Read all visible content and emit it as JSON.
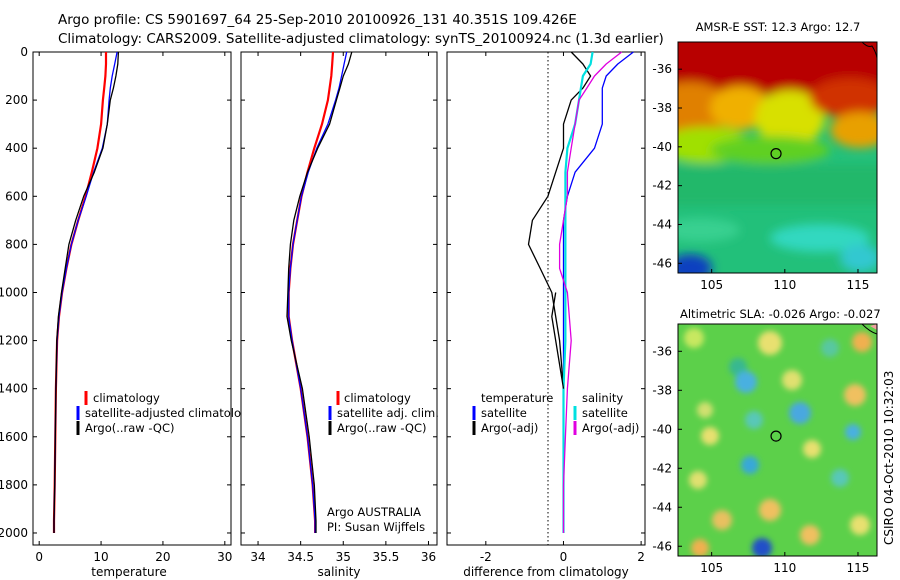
{
  "header": {
    "title_line1": "Argo profile: CS 5901697_64 25-Sep-2010 20100926_131 40.351S 109.426E",
    "title_line2": "Climatology: CARS2009. Satellite-adjusted climatology: synTS_20100924.nc (1.3d earlier)"
  },
  "colors": {
    "climatology": "#ff0000",
    "satellite": "#0000ff",
    "argo": "#000000",
    "salinity_satellite": "#00e0e0",
    "salinity_argo": "#e000e0"
  },
  "chart_data": [
    {
      "type": "line",
      "xlabel": "temperature",
      "xlim": [
        -1,
        31
      ],
      "ylim": [
        2050,
        0
      ],
      "xticks": [
        "0",
        "10",
        "20",
        "30"
      ],
      "yticks": [
        "0",
        "200",
        "400",
        "600",
        "800",
        "1000",
        "1200",
        "1400",
        "1600",
        "1800",
        "2000"
      ],
      "legend": [
        "climatology",
        "satellite-adjusted climatology",
        "Argo(..raw -QC)"
      ],
      "series": [
        {
          "name": "climatology",
          "color": "#ff0000",
          "width": 2.2,
          "x": [
            10.8,
            10.8,
            10.7,
            10.5,
            10.3,
            10.0,
            9.4,
            8.5,
            7.5,
            6.3,
            5.2,
            4.4,
            3.7,
            3.2,
            2.9,
            2.7,
            2.6,
            2.5,
            2.4,
            2.4
          ],
          "y": [
            0,
            50,
            100,
            150,
            200,
            300,
            400,
            500,
            600,
            700,
            800,
            900,
            1000,
            1100,
            1200,
            1400,
            1600,
            1800,
            1950,
            2000
          ]
        },
        {
          "name": "satellite-adjusted climatology",
          "color": "#0000ff",
          "width": 1.3,
          "x": [
            12.6,
            12.2,
            11.8,
            11.5,
            11.3,
            11.0,
            10.2,
            8.8,
            7.6,
            6.3,
            5.2,
            4.4,
            3.7,
            3.2,
            2.9,
            2.7,
            2.6,
            2.5,
            2.4,
            2.4
          ],
          "y": [
            0,
            50,
            100,
            150,
            200,
            300,
            400,
            500,
            600,
            700,
            800,
            900,
            1000,
            1100,
            1200,
            1400,
            1600,
            1800,
            1950,
            2000
          ]
        },
        {
          "name": "Argo(..raw -QC)",
          "color": "#000000",
          "width": 1.3,
          "x": [
            12.8,
            12.7,
            12.4,
            12.0,
            11.5,
            11.0,
            10.3,
            8.9,
            7.2,
            5.9,
            4.8,
            4.2,
            3.6,
            3.1,
            2.85,
            2.7,
            2.6,
            2.5,
            2.4,
            2.4
          ],
          "y": [
            0,
            50,
            100,
            150,
            200,
            300,
            400,
            500,
            600,
            700,
            800,
            900,
            1000,
            1100,
            1200,
            1400,
            1600,
            1800,
            1950,
            2000
          ]
        }
      ]
    },
    {
      "type": "line",
      "xlabel": "salinity",
      "xlim": [
        33.8,
        36.1
      ],
      "ylim": [
        2050,
        0
      ],
      "xticks": [
        "34",
        "34.5",
        "35",
        "35.5",
        "36"
      ],
      "legend": [
        "climatology",
        "satellite adj. clim.",
        "Argo(..raw -QC)"
      ],
      "annotation": [
        "Argo AUSTRALIA",
        "PI: Susan Wijffels"
      ],
      "series": [
        {
          "name": "climatology",
          "color": "#ff0000",
          "width": 2.2,
          "x": [
            34.88,
            34.87,
            34.86,
            34.84,
            34.82,
            34.75,
            34.66,
            34.58,
            34.51,
            34.46,
            34.41,
            34.38,
            34.36,
            34.36,
            34.4,
            34.5,
            34.58,
            34.64,
            34.67,
            34.67
          ],
          "y": [
            0,
            50,
            100,
            150,
            200,
            300,
            400,
            500,
            600,
            700,
            800,
            900,
            1000,
            1100,
            1200,
            1400,
            1600,
            1800,
            1950,
            2000
          ]
        },
        {
          "name": "satellite adj. clim.",
          "color": "#0000ff",
          "width": 1.3,
          "x": [
            35.04,
            35.01,
            34.98,
            34.95,
            34.91,
            34.82,
            34.69,
            34.59,
            34.51,
            34.46,
            34.41,
            34.38,
            34.36,
            34.36,
            34.4,
            34.5,
            34.58,
            34.64,
            34.67,
            34.67
          ],
          "y": [
            0,
            50,
            100,
            150,
            200,
            300,
            400,
            500,
            600,
            700,
            800,
            900,
            1000,
            1100,
            1200,
            1400,
            1600,
            1800,
            1950,
            2000
          ]
        },
        {
          "name": "Argo(..raw -QC)",
          "color": "#000000",
          "width": 1.3,
          "x": [
            35.1,
            35.06,
            35.0,
            34.96,
            34.92,
            34.84,
            34.7,
            34.58,
            34.49,
            34.42,
            34.38,
            34.36,
            34.35,
            34.34,
            34.39,
            34.52,
            34.6,
            34.66,
            34.68,
            34.68
          ],
          "y": [
            0,
            50,
            100,
            150,
            200,
            300,
            400,
            500,
            600,
            700,
            800,
            900,
            1000,
            1100,
            1200,
            1400,
            1600,
            1800,
            1950,
            2000
          ]
        }
      ]
    },
    {
      "type": "line",
      "xlabel": "difference from climatology",
      "xlim": [
        -3,
        2.1
      ],
      "ylim": [
        2050,
        0
      ],
      "xticks": [
        "-2",
        "0",
        "2"
      ],
      "legend_temperature": [
        "temperature",
        "satellite",
        "Argo(-adj)"
      ],
      "legend_salinity": [
        "salinity",
        "satellite",
        "Argo(-adj)"
      ],
      "series": [
        {
          "name": "temperature satellite",
          "color": "#0000ff",
          "width": 1.3,
          "x": [
            1.8,
            1.4,
            1.1,
            1.0,
            1.0,
            1.0,
            0.8,
            0.3,
            0.1,
            0.0,
            0.0,
            0.0,
            0.0,
            0.0,
            0.0,
            0.0,
            0.0,
            0.0,
            0.0
          ],
          "y": [
            0,
            50,
            100,
            150,
            200,
            300,
            400,
            500,
            600,
            700,
            800,
            900,
            1000,
            1200,
            1400,
            1600,
            1800,
            1950,
            2000
          ]
        },
        {
          "name": "temperature Argo(-adj)",
          "color": "#000000",
          "width": 1.3,
          "x": [
            0.2,
            0.5,
            0.7,
            0.5,
            0.2,
            0.0,
            0.0,
            -0.2,
            -0.4,
            -0.8,
            -0.9,
            -0.6,
            -0.3,
            -0.1,
            0.0,
            0.0,
            0.0,
            0.0,
            0.0
          ],
          "y": [
            0,
            50,
            100,
            150,
            200,
            300,
            400,
            500,
            600,
            700,
            800,
            900,
            1000,
            1200,
            1400,
            1600,
            1800,
            1950,
            2000
          ]
        },
        {
          "name": "salinity satellite",
          "color": "#00e0e0",
          "width": 2.2,
          "x": [
            0.75,
            0.7,
            0.5,
            0.45,
            0.4,
            0.3,
            0.1,
            0.05,
            0.05,
            0.05,
            0.05,
            0.05,
            0.05,
            0.05,
            0.0,
            0.0,
            0.0,
            0.0,
            0.0
          ],
          "y": [
            0,
            50,
            100,
            150,
            200,
            300,
            400,
            500,
            600,
            700,
            800,
            900,
            1000,
            1200,
            1400,
            1600,
            1800,
            1950,
            2000
          ]
        },
        {
          "name": "salinity Argo(-adj)",
          "color": "#e000e0",
          "width": 1.3,
          "x": [
            1.5,
            1.1,
            0.8,
            0.6,
            0.4,
            0.3,
            0.2,
            0.1,
            0.1,
            0.0,
            -0.1,
            -0.1,
            0.1,
            0.2,
            0.1,
            0.05,
            0.0,
            0.0,
            0.0
          ],
          "y": [
            0,
            50,
            100,
            150,
            200,
            300,
            400,
            500,
            600,
            700,
            800,
            900,
            1000,
            1200,
            1400,
            1600,
            1800,
            1950,
            2000
          ]
        },
        {
          "name": "temperature Argo(-adj) deep",
          "color": "#000000",
          "width": 1.3,
          "x": [
            -0.2,
            -0.3,
            -0.2,
            -0.1,
            0.0
          ],
          "y": [
            1000,
            1100,
            1200,
            1300,
            1400
          ]
        }
      ]
    },
    {
      "type": "heatmap",
      "title": "AMSR-E SST: 12.3 Argo: 12.7",
      "xlim": [
        102.7,
        116.3
      ],
      "ylim": [
        -46.5,
        -34.6
      ],
      "xticks": [
        "105",
        "110",
        "115"
      ],
      "yticks": [
        "-36",
        "-38",
        "-40",
        "-42",
        "-44",
        "-46"
      ],
      "marker": [
        109.4,
        -40.35
      ]
    },
    {
      "type": "heatmap",
      "title": "Altimetric SLA: -0.026 Argo: -0.027",
      "xlim": [
        102.7,
        116.3
      ],
      "ylim": [
        -46.5,
        -34.6
      ],
      "xticks": [
        "105",
        "110",
        "115"
      ],
      "yticks": [
        "-36",
        "-38",
        "-40",
        "-42",
        "-44",
        "-46"
      ],
      "marker": [
        109.4,
        -40.35
      ]
    }
  ],
  "side_label": "CSIRO 04-Oct-2010 10:32:03"
}
